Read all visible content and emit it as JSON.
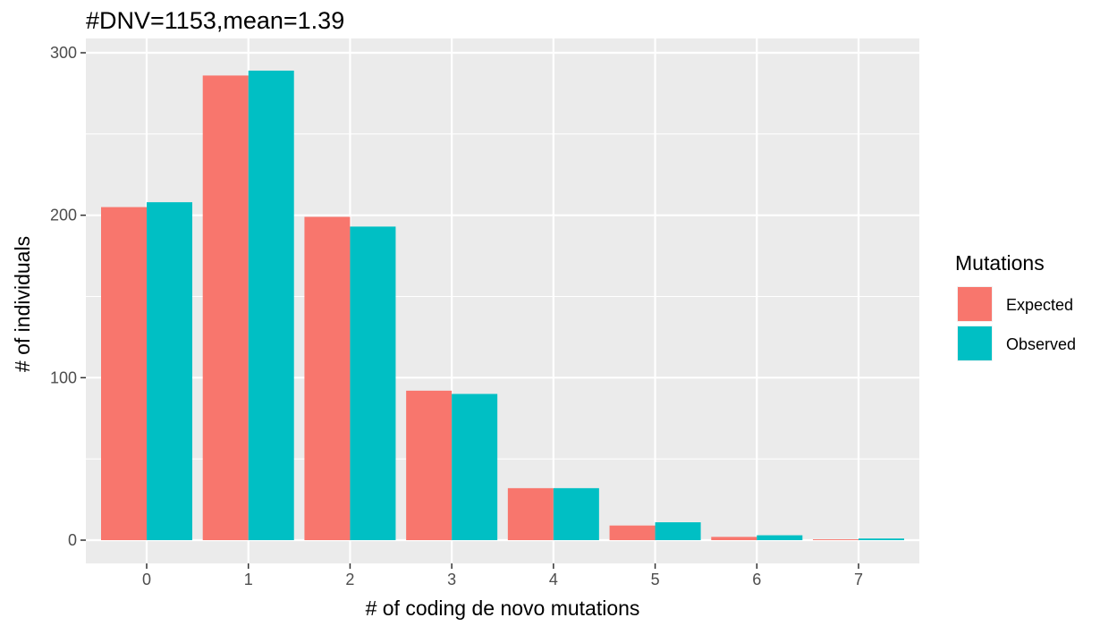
{
  "chart_data": {
    "type": "bar",
    "title": "#DNV=1153,mean=1.39",
    "xlabel": "# of coding de novo mutations",
    "ylabel": "# of individuals",
    "categories": [
      "0",
      "1",
      "2",
      "3",
      "4",
      "5",
      "6",
      "7"
    ],
    "series": [
      {
        "name": "Expected",
        "color": "#F8766D",
        "values": [
          205,
          286,
          199,
          92,
          32,
          9,
          2,
          0.5
        ]
      },
      {
        "name": "Observed",
        "color": "#00BFC4",
        "values": [
          208,
          289,
          193,
          90,
          32,
          11,
          3,
          1
        ]
      }
    ],
    "ylim": [
      0,
      300
    ],
    "yticks": [
      "0",
      "100",
      "200",
      "300"
    ],
    "grid": true,
    "panel_background": "#EBEBEB",
    "grid_color": "#FFFFFF",
    "legend": {
      "title": "Mutations",
      "position": "right"
    }
  }
}
